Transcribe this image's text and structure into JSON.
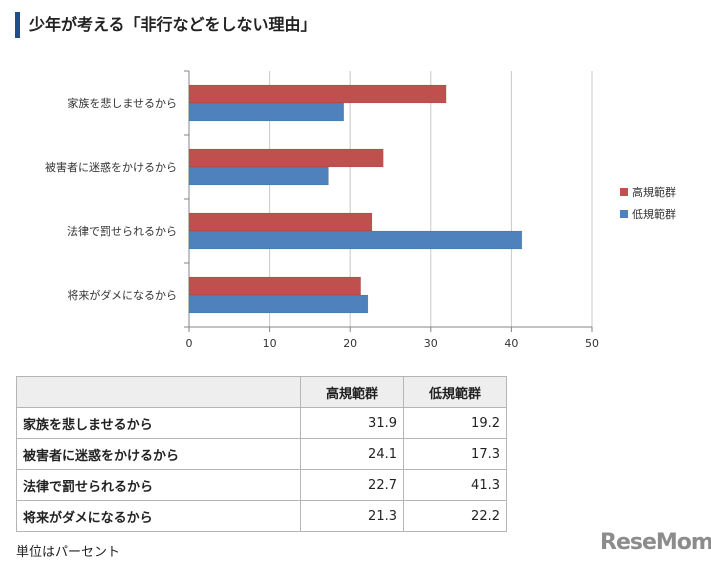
{
  "header": {
    "title": "少年が考える「非行などをしない理由」"
  },
  "chart_data": {
    "type": "bar",
    "orientation": "horizontal",
    "categories": [
      "家族を悲しませるから",
      "被害者に迷惑をかけるから",
      "法律で罰せられるから",
      "将来がダメになるから"
    ],
    "series": [
      {
        "name": "高規範群",
        "color": "#c0504d",
        "values": [
          31.9,
          24.1,
          22.7,
          21.3
        ]
      },
      {
        "name": "低規範群",
        "color": "#4f81bd",
        "values": [
          19.2,
          17.3,
          41.3,
          22.2
        ]
      }
    ],
    "xlim": [
      0,
      50
    ],
    "ticks": [
      "0",
      "10",
      "20",
      "30",
      "40",
      "50"
    ],
    "grid": true,
    "legend_position": "right"
  },
  "table": {
    "headers": [
      "",
      "高規範群",
      "低規範群"
    ],
    "rows": [
      [
        "家族を悲しませるから",
        "31.9",
        "19.2"
      ],
      [
        "被害者に迷惑をかけるから",
        "24.1",
        "17.3"
      ],
      [
        "法律で罰せられるから",
        "22.7",
        "41.3"
      ],
      [
        "将来がダメになるから",
        "21.3",
        "22.2"
      ]
    ]
  },
  "footer": {
    "unit_note": "単位はパーセント",
    "logo": "ReseMom"
  }
}
